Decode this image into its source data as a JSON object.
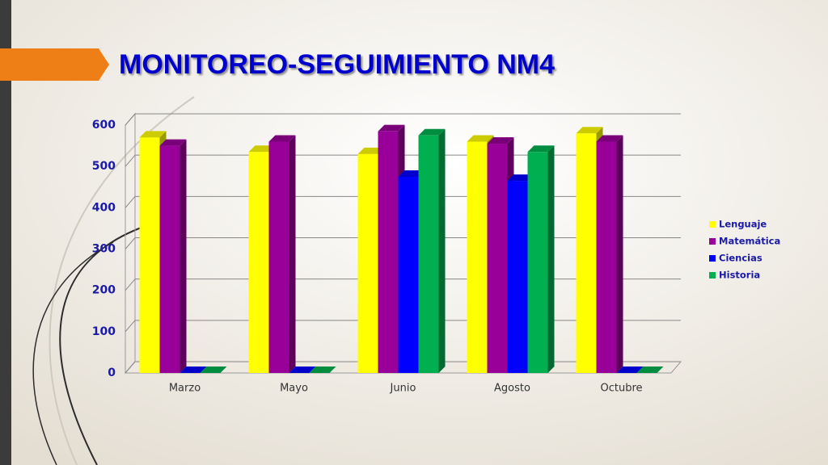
{
  "chart_data": {
    "type": "bar3d",
    "title": "MONITOREO-SEGUIMIENTO NM4",
    "categories": [
      "Marzo",
      "Mayo",
      "Junio",
      "Agosto",
      "Octubre"
    ],
    "series": [
      {
        "name": "Lenguaje",
        "color": "#ffff00",
        "values": [
          570,
          535,
          530,
          560,
          580
        ]
      },
      {
        "name": "Matemática",
        "color": "#990099",
        "values": [
          550,
          560,
          585,
          555,
          560
        ]
      },
      {
        "name": "Ciencias",
        "color": "#0000ff",
        "values": [
          0,
          0,
          475,
          465,
          0
        ]
      },
      {
        "name": "Historia",
        "color": "#00b050",
        "values": [
          0,
          0,
          575,
          535,
          0
        ]
      }
    ],
    "ylim": [
      0,
      600
    ],
    "yticks": [
      0,
      100,
      200,
      300,
      400,
      500,
      600
    ],
    "grid": true,
    "legend": "right"
  }
}
